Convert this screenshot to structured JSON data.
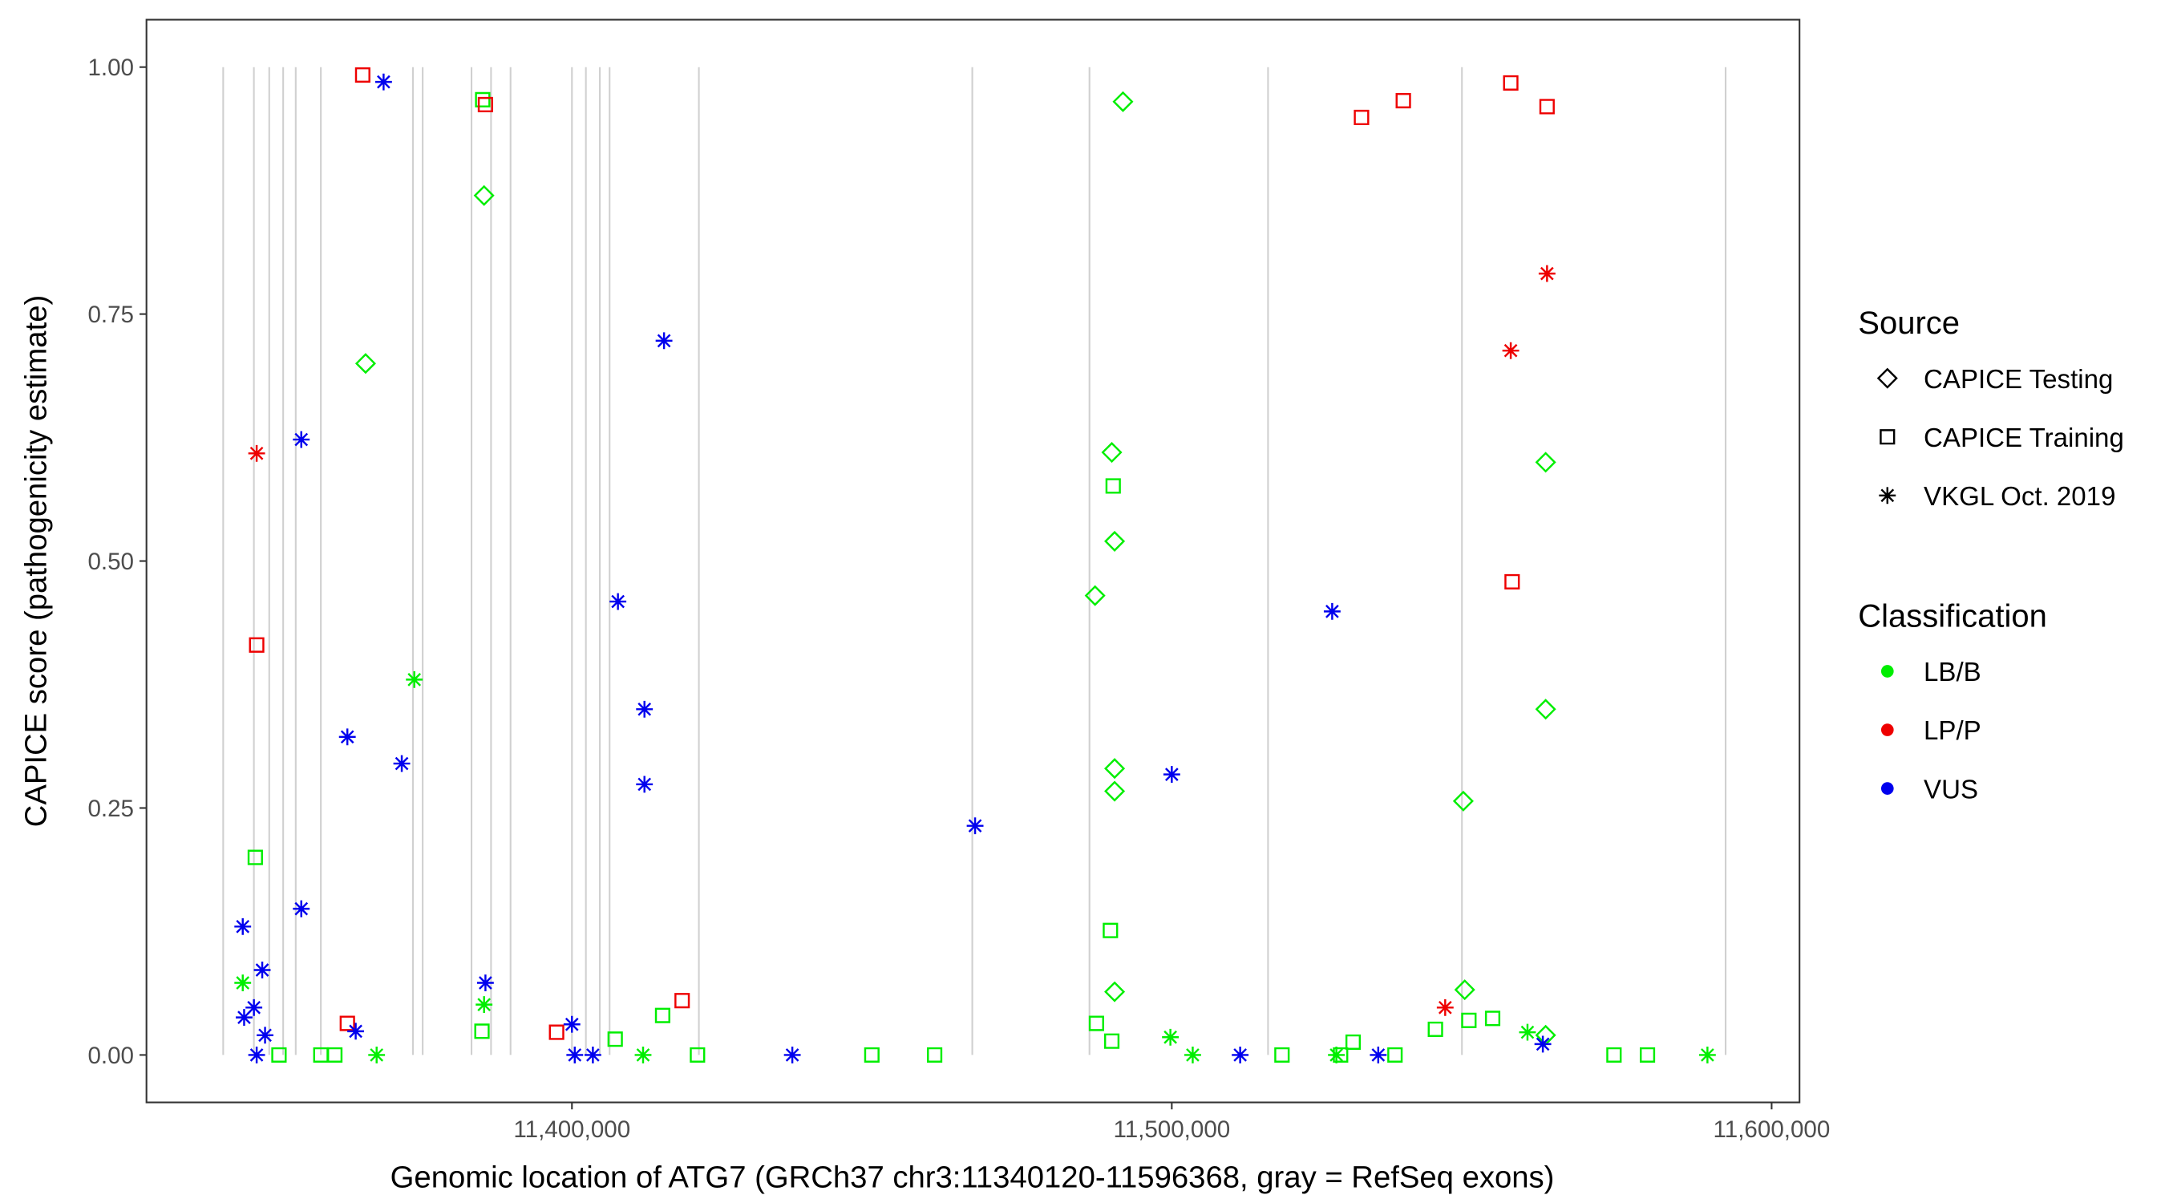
{
  "chart_data": {
    "type": "scatter",
    "x_label": "Genomic location of ATG7 (GRCh37 chr3:11340120-11596368, gray = RefSeq exons)",
    "y_label": "CAPICE score (pathogenicity estimate)",
    "xlim": [
      11329070,
      11604650
    ],
    "ylim": [
      -0.048,
      1.048
    ],
    "xticks": [
      {
        "value": 11400000,
        "label": "11,400,000"
      },
      {
        "value": 11500000,
        "label": "11,500,000"
      },
      {
        "value": 11600000,
        "label": "11,600,000"
      }
    ],
    "yticks": [
      {
        "value": 0,
        "label": "0.00"
      },
      {
        "value": 0.25,
        "label": "0.25"
      },
      {
        "value": 0.5,
        "label": "0.50"
      },
      {
        "value": 0.75,
        "label": "0.75"
      },
      {
        "value": 1,
        "label": "1.00"
      }
    ],
    "grid": false,
    "exons": [
      11341860,
      11346977,
      11349535,
      11351860,
      11353953,
      11358140,
      11373488,
      11375116,
      11383256,
      11386512,
      11389767,
      11400000,
      11402326,
      11404651,
      11406279,
      11421163,
      11466744,
      11486279,
      11516047,
      11548372,
      11592326
    ],
    "exon_color": "#d0d0d0",
    "legends": [
      {
        "title": "Source",
        "items": [
          {
            "label": "CAPICE Testing",
            "shape": "diamond"
          },
          {
            "label": "CAPICE Training",
            "shape": "square"
          },
          {
            "label": "VKGL Oct. 2019",
            "shape": "asterisk"
          }
        ]
      },
      {
        "title": "Classification",
        "items": [
          {
            "label": "LB/B",
            "color": "#00ee00"
          },
          {
            "label": "LP/P",
            "color": "#ee0000"
          },
          {
            "label": "VUS",
            "color": "#0000ee"
          }
        ]
      }
    ],
    "series": [
      {
        "shape": "diamond",
        "color": "#00ee00",
        "x": [
          11365600,
          11385350,
          11491860,
          11490000,
          11490470,
          11487210,
          11490470,
          11490470,
          11490470,
          11548600,
          11548840,
          11562330,
          11562330,
          11562330
        ],
        "y": [
          0.7,
          0.87,
          0.965,
          0.61,
          0.52,
          0.465,
          0.29,
          0.267,
          0.064,
          0.257,
          0.066,
          0.6,
          0.35,
          0.02
        ]
      },
      {
        "shape": "square",
        "color": "#00ee00",
        "x": [
          11347210,
          11385120,
          11415120,
          11490230,
          11489770,
          11487440,
          11490000,
          11549530,
          11553490,
          11450000,
          11460465,
          11573720,
          11579300,
          11518370,
          11528140,
          11537210,
          11385000,
          11358140,
          11360470,
          11351160,
          11420930,
          11407210,
          11530230,
          11543950
        ],
        "y": [
          0.2,
          0.967,
          0.04,
          0.576,
          0.126,
          0.032,
          0.014,
          0.035,
          0.037,
          0,
          0,
          0,
          0,
          0,
          0,
          0,
          0.024,
          0,
          0,
          0,
          0,
          0.016,
          0.013,
          0.026
        ]
      },
      {
        "shape": "asterisk",
        "color": "#00ee00",
        "x": [
          11345120,
          11373720,
          11385350,
          11499770,
          11503490,
          11589300,
          11559300,
          11411860,
          11367440,
          11527440
        ],
        "y": [
          0.073,
          0.38,
          0.051,
          0.018,
          0,
          0,
          0.023,
          0,
          0,
          0
        ]
      },
      {
        "shape": "square",
        "color": "#ee0000",
        "x": [
          11365120,
          11385580,
          11347440,
          11362560,
          11397440,
          11418370,
          11531630,
          11538600,
          11556510,
          11562560,
          11556740
        ],
        "y": [
          0.992,
          0.962,
          0.415,
          0.032,
          0.023,
          0.055,
          0.949,
          0.966,
          0.984,
          0.96,
          0.479
        ]
      },
      {
        "shape": "asterisk",
        "color": "#ee0000",
        "x": [
          11347440,
          11556510,
          11562560,
          11545580
        ],
        "y": [
          0.609,
          0.713,
          0.791,
          0.048
        ]
      },
      {
        "shape": "asterisk",
        "color": "#0000ee",
        "x": [
          11368600,
          11354880,
          11362560,
          11371630,
          11354880,
          11345120,
          11348370,
          11346980,
          11345350,
          11363950,
          11385580,
          11415350,
          11407670,
          11412090,
          11412090,
          11467210,
          11500000,
          11526740,
          11400000,
          11400470,
          11403490,
          11436740,
          11511400,
          11534420,
          11561860,
          11347440,
          11348840
        ],
        "y": [
          0.985,
          0.623,
          0.322,
          0.295,
          0.148,
          0.13,
          0.086,
          0.048,
          0.038,
          0.024,
          0.073,
          0.723,
          0.459,
          0.35,
          0.274,
          0.232,
          0.284,
          0.449,
          0.031,
          0,
          0,
          0,
          0,
          0,
          0.011,
          0,
          0.02
        ]
      }
    ]
  }
}
